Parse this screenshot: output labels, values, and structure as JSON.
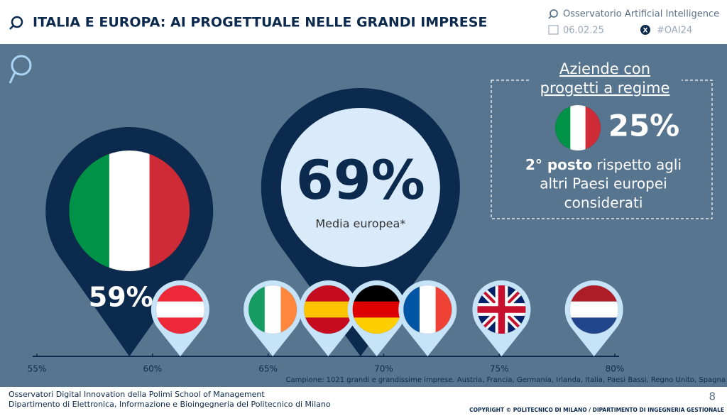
{
  "header": {
    "title": "ITALIA E EUROPA: AI PROGETTUALE NELLE GRANDI IMPRESE",
    "org": "Osservatorio Artificial Intelligence",
    "date": "06.02.25",
    "hashtag": "#OAI24"
  },
  "box": {
    "title": [
      "Aziende con",
      "progetti a regime"
    ],
    "value": "25%",
    "flag": {
      "colors": [
        "#009246",
        "#ffffff",
        "#ce2b37"
      ],
      "stripes": "vertical"
    },
    "rank": "2° posto",
    "text": [
      "rispetto agli",
      "altri Paesi europei",
      "considerati"
    ]
  },
  "chart_data": {
    "type": "pin",
    "xlim": [
      55,
      80
    ],
    "xticks": [
      {
        "value": 55,
        "label": "55%"
      },
      {
        "value": 60,
        "label": "60%"
      },
      {
        "value": 65,
        "label": "65%"
      },
      {
        "value": 70,
        "label": "70%"
      },
      {
        "value": 75,
        "label": "75%"
      },
      {
        "value": 80,
        "label": "80%"
      }
    ],
    "color": "#0c2a4d",
    "pin_color": "#c7e3f7",
    "highlights": [
      {
        "value": 59,
        "label": "59%",
        "flag": {
          "colors": [
            "#009246",
            "#ffffff",
            "#ce2b37"
          ],
          "stripes": "vertical"
        }
      },
      {
        "value": 69,
        "label": "69%",
        "caption": "Media europea*"
      }
    ],
    "values": [
      61.2,
      65.2,
      67.6,
      69.7,
      71.9,
      75.1,
      79.1
    ],
    "flags": [
      {
        "colors": [
          "#ed2939",
          "#ffffff",
          "#ed2939"
        ],
        "stripes": "horizontal"
      },
      {
        "colors": [
          "#169b62",
          "#ffffff",
          "#ff883e"
        ],
        "stripes": "vertical"
      },
      {
        "colors": [
          "#c60b1e",
          "#ffc400",
          "#c60b1e"
        ],
        "stripes": "horizontal"
      },
      {
        "colors": [
          "#000000",
          "#dd0000",
          "#ffce00"
        ],
        "stripes": "horizontal"
      },
      {
        "colors": [
          "#0055a4",
          "#ffffff",
          "#ef4135"
        ],
        "stripes": "vertical"
      },
      {
        "colors": [
          "#012169",
          "#ffffff",
          "#c8102e"
        ],
        "stripes": "cross"
      },
      {
        "colors": [
          "#ae1c28",
          "#ffffff",
          "#21468b"
        ],
        "stripes": "horizontal"
      }
    ],
    "note": "Campione: 1021 grandi e grandissime imprese. Austria, Francia, Germania, Irlanda, Italia, Paesi Bassi, Regno Unito, Spagna"
  },
  "footer": {
    "lines": [
      "Osservatori Digital Innovation della Polimi School of Management",
      "Dipartimento di Elettronica, Informazione e Bioingegneria del Politecnico di Milano"
    ],
    "page": "8",
    "copyright": "COPYRIGHT © POLITECNICO DI MILANO / DIPARTIMENTO DI INGEGNERIA GESTIONALE"
  }
}
